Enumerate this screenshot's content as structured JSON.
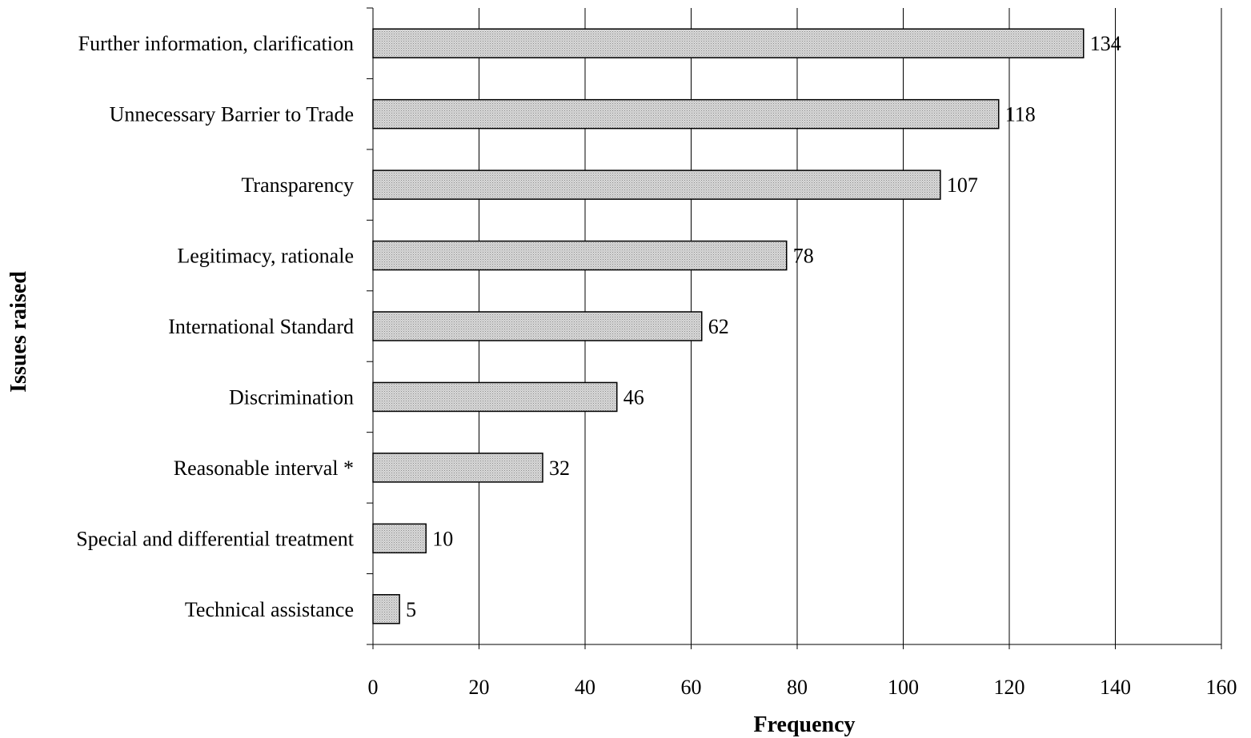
{
  "chart_data": {
    "type": "bar",
    "orientation": "horizontal",
    "title": "",
    "xlabel": "Frequency",
    "ylabel": "Issues raised",
    "categories": [
      "Further information, clarification",
      "Unnecessary Barrier to Trade",
      "Transparency",
      "Legitimacy, rationale",
      "International Standard",
      "Discrimination",
      "Reasonable interval *",
      "Special and differential treatment",
      "Technical assistance"
    ],
    "values": [
      134,
      118,
      107,
      78,
      62,
      46,
      32,
      10,
      5
    ],
    "data_labels": [
      "134",
      "118",
      "107",
      "78",
      "62",
      "46",
      "32",
      "10",
      "5"
    ],
    "xlim": [
      0,
      160
    ],
    "xticks": [
      0,
      20,
      40,
      60,
      80,
      100,
      120,
      140,
      160
    ],
    "xtick_labels": [
      "0",
      "20",
      "40",
      "60",
      "80",
      "100",
      "120",
      "140",
      "160"
    ],
    "grid": "vertical",
    "legend": "none",
    "bar_fill": "dotted light gray",
    "colors": {
      "bar_fill": "#d9d9d9",
      "bar_dots": "#8c8c8c",
      "bar_edge": "#000000",
      "grid": "#000000"
    }
  }
}
